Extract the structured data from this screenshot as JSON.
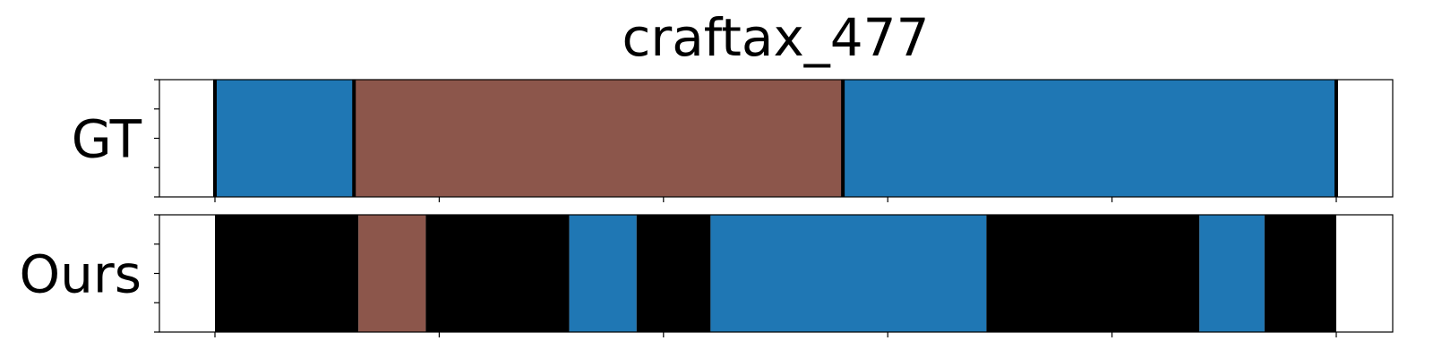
{
  "chart_data": {
    "type": "bar",
    "title": "craftax_477",
    "x_range": [
      0,
      500
    ],
    "rows": [
      {
        "label": "GT",
        "segments": [
          {
            "start": 0,
            "end": 62,
            "color": "#1f77b4"
          },
          {
            "start": 62,
            "end": 280,
            "color": "#8c564b"
          },
          {
            "start": 280,
            "end": 500,
            "color": "#1f77b4"
          }
        ],
        "boundaries": [
          0,
          62,
          280,
          500
        ]
      },
      {
        "label": "Ours",
        "segments": [
          {
            "start": 0,
            "end": 64,
            "color": "#000000"
          },
          {
            "start": 64,
            "end": 94,
            "color": "#8c564b"
          },
          {
            "start": 94,
            "end": 158,
            "color": "#000000"
          },
          {
            "start": 158,
            "end": 188,
            "color": "#1f77b4"
          },
          {
            "start": 188,
            "end": 221,
            "color": "#000000"
          },
          {
            "start": 221,
            "end": 344,
            "color": "#1f77b4"
          },
          {
            "start": 344,
            "end": 439,
            "color": "#000000"
          },
          {
            "start": 439,
            "end": 468,
            "color": "#1f77b4"
          },
          {
            "start": 468,
            "end": 500,
            "color": "#000000"
          }
        ],
        "boundaries": []
      }
    ],
    "x_ticks": [
      0,
      100,
      200,
      300,
      400,
      500
    ],
    "tick_labels_visible": false,
    "grid": false,
    "colors": {
      "blue": "#1f77b4",
      "brown": "#8c564b",
      "black": "#000000"
    }
  }
}
